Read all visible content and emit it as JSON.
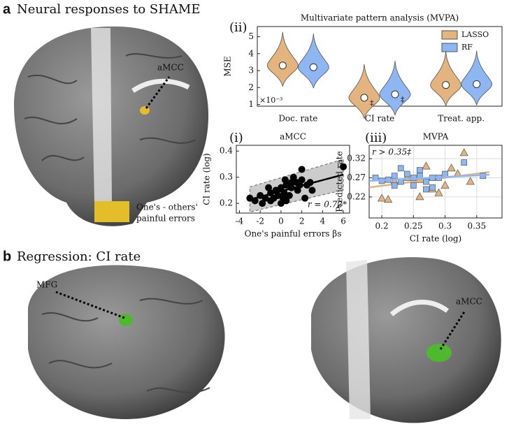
{
  "panel_a": {
    "letter": "a",
    "title": "Neural responses to SHAME",
    "roi_label": "aMCC",
    "legend": [
      "One's - others'",
      "painful errors"
    ]
  },
  "panel_b": {
    "letter": "b",
    "title": "Regression: CI rate",
    "labels": [
      "MFG",
      "aMCC"
    ]
  },
  "chart_data": [
    {
      "type": "violin",
      "panel_label": "(ii)",
      "title": "Multivariate pattern analysis (MVPA)",
      "ylabel": "MSE",
      "scale_note": "×10⁻³",
      "categories": [
        "Doc. rate",
        "CI rate",
        "Treat. app."
      ],
      "series": [
        {
          "name": "LASSO",
          "color": "#e3b47e",
          "values": [
            3.3,
            1.4,
            2.15
          ],
          "notes": [
            null,
            "‡",
            null
          ]
        },
        {
          "name": "RF",
          "color": "#8db6f2",
          "values": [
            3.2,
            1.6,
            2.2
          ],
          "notes": [
            null,
            "‡",
            null
          ]
        }
      ],
      "ylim": [
        0.9,
        5.6
      ],
      "yticks": [
        1,
        2,
        3,
        4,
        5
      ],
      "legend": "upper right"
    },
    {
      "type": "scatter",
      "panel_label": "(i)",
      "title": "aMCC",
      "xlabel": "One's painful errors βs",
      "ylabel": "CI rate (log)",
      "annotation": "r = 0.72*",
      "series": [
        {
          "color": "#000000",
          "marker": "circle",
          "x": [
            -3,
            -2.5,
            -2,
            -1.8,
            -1.5,
            -1,
            -1,
            -0.7,
            -0.5,
            -0.3,
            0,
            0,
            0.2,
            0.3,
            0.5,
            0.5,
            0.8,
            1,
            1,
            1.2,
            1.5,
            1.6,
            1.8,
            2,
            2,
            2.3,
            2.5,
            2.8,
            3,
            6,
            -1.2,
            0.4
          ],
          "values": [
            0.22,
            0.21,
            0.23,
            0.2,
            0.22,
            0.24,
            0.21,
            0.22,
            0.25,
            0.23,
            0.2,
            0.26,
            0.22,
            0.24,
            0.27,
            0.21,
            0.23,
            0.28,
            0.26,
            0.3,
            0.28,
            0.25,
            0.27,
            0.29,
            0.33,
            0.22,
            0.27,
            0.28,
            0.25,
            0.34,
            0.26,
            0.29
          ],
          "fit_x": [
            -3,
            6
          ],
          "fit_y": [
            0.215,
            0.31
          ]
        }
      ],
      "xlim": [
        -4.3,
        6.6
      ],
      "ylim": [
        0.163,
        0.422
      ],
      "xticks": [
        -4,
        -2,
        0,
        2,
        4,
        6
      ],
      "yticks": [
        0.2,
        0.3,
        0.4
      ]
    },
    {
      "type": "scatter",
      "panel_label": "(iii)",
      "title": "MVPA",
      "xlabel": "CI rate (log)",
      "ylabel": "Predicted rate",
      "annotation": "r > 0.35‡",
      "series": [
        {
          "color": "#e3b47e",
          "marker": "triangle",
          "x": [
            0.2,
            0.21,
            0.26,
            0.28,
            0.32,
            0.33,
            0.27,
            0.3,
            0.24,
            0.29,
            0.22,
            0.34,
            0.31,
            0.26
          ],
          "values": [
            0.216,
            0.213,
            0.22,
            0.24,
            0.28,
            0.335,
            0.3,
            0.25,
            0.27,
            0.23,
            0.26,
            0.26,
            0.295,
            0.265
          ],
          "fit_x": [
            0.18,
            0.37
          ],
          "fit_y": [
            0.245,
            0.285
          ]
        },
        {
          "color": "#8db6f2",
          "marker": "square",
          "x": [
            0.19,
            0.2,
            0.21,
            0.22,
            0.23,
            0.24,
            0.25,
            0.25,
            0.26,
            0.27,
            0.28,
            0.29,
            0.3,
            0.23,
            0.26,
            0.33,
            0.36,
            0.27,
            0.22,
            0.28
          ],
          "values": [
            0.27,
            0.262,
            0.265,
            0.275,
            0.26,
            0.28,
            0.27,
            0.25,
            0.275,
            0.26,
            0.27,
            0.27,
            0.28,
            0.295,
            0.29,
            0.31,
            0.275,
            0.24,
            0.25,
            0.245
          ],
          "fit_x": [
            0.18,
            0.37
          ],
          "fit_y": [
            0.262,
            0.278
          ]
        }
      ],
      "xlim": [
        0.18,
        0.39
      ],
      "ylim": [
        0.165,
        0.355
      ],
      "xticks": [
        0.2,
        0.25,
        0.3,
        0.35
      ],
      "yticks": [
        0.22,
        0.27,
        0.32
      ],
      "grid": true
    }
  ]
}
